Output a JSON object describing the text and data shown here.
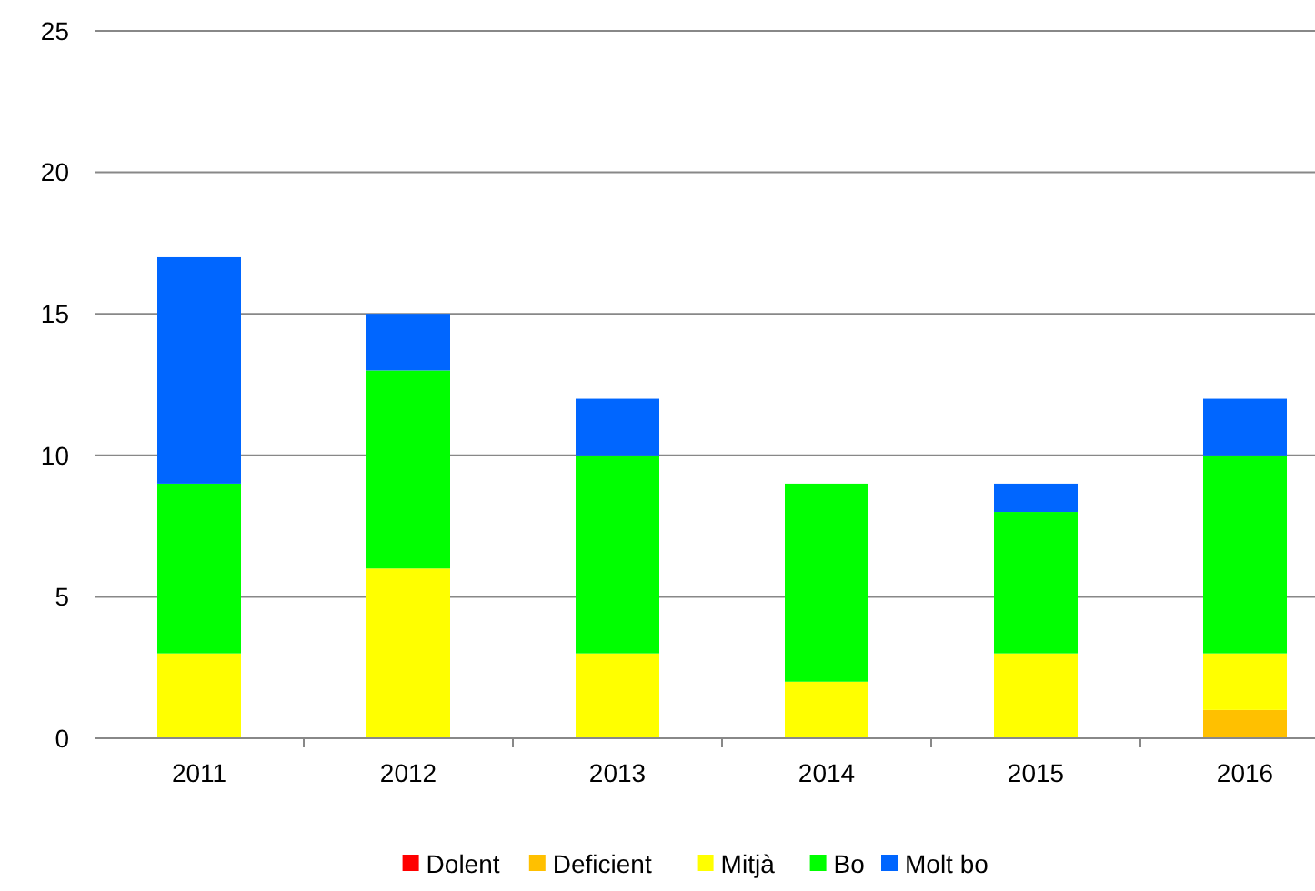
{
  "chart_data": {
    "type": "bar",
    "stacked": true,
    "categories": [
      "2011",
      "2012",
      "2013",
      "2014",
      "2015",
      "2016"
    ],
    "series": [
      {
        "name": "Dolent",
        "color": "#ff0000",
        "values": [
          0,
          0,
          0,
          0,
          0,
          0
        ]
      },
      {
        "name": "Deficient",
        "color": "#ffc000",
        "values": [
          0,
          0,
          0,
          0,
          0,
          1
        ]
      },
      {
        "name": "Mitjà",
        "color": "#ffff00",
        "values": [
          3,
          6,
          3,
          2,
          3,
          2
        ]
      },
      {
        "name": "Bo",
        "color": "#00ff00",
        "values": [
          6,
          7,
          7,
          7,
          5,
          7
        ]
      },
      {
        "name": "Molt bo",
        "color": "#0066ff",
        "values": [
          8,
          2,
          2,
          0,
          1,
          2
        ]
      }
    ],
    "ylim": [
      0,
      25
    ],
    "yticks": [
      0,
      5,
      10,
      15,
      20,
      25
    ],
    "grid": "y",
    "legend": "bottom"
  }
}
